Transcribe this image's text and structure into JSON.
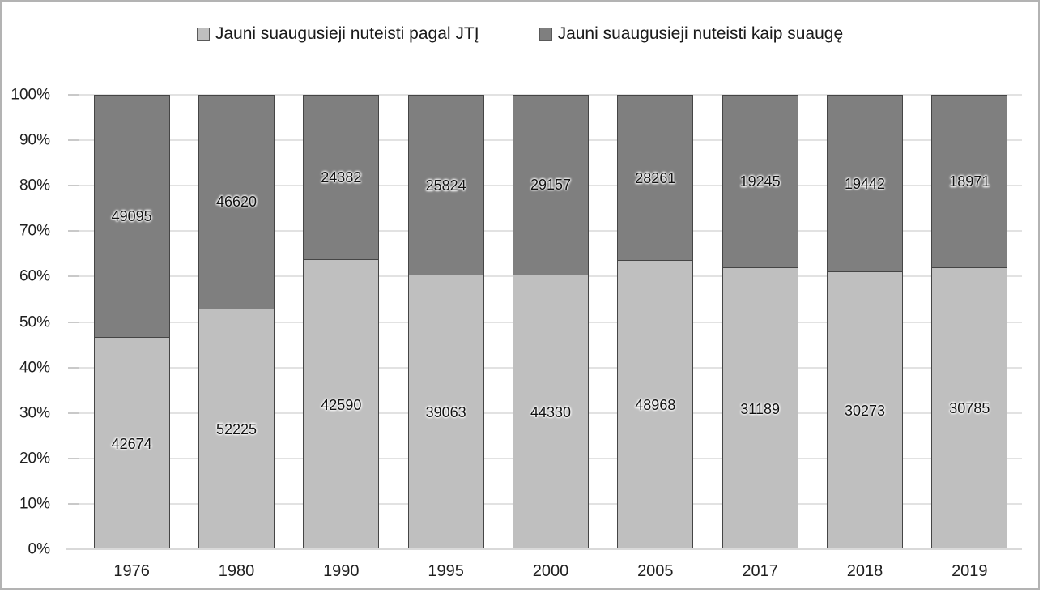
{
  "chart_data": {
    "type": "bar",
    "stacking": "percent",
    "title": "",
    "xlabel": "",
    "ylabel": "",
    "categories": [
      "1976",
      "1980",
      "1990",
      "1995",
      "2000",
      "2005",
      "2017",
      "2018",
      "2019"
    ],
    "series": [
      {
        "name": "Jauni suaugusieji nuteisti pagal JTĮ",
        "color": "#bfbfbf",
        "values": [
          42674,
          52225,
          42590,
          39063,
          44330,
          48968,
          31189,
          30273,
          30785
        ]
      },
      {
        "name": "Jauni suaugusieji nuteisti kaip suaugę",
        "color": "#7f7f7f",
        "values": [
          49095,
          46620,
          24382,
          25824,
          29157,
          28261,
          19245,
          19442,
          18971
        ]
      }
    ],
    "y_ticks": [
      "0%",
      "10%",
      "20%",
      "30%",
      "40%",
      "50%",
      "60%",
      "70%",
      "80%",
      "90%",
      "100%"
    ],
    "ylim": [
      0,
      100
    ],
    "grid": true,
    "legend_position": "top",
    "colors": {
      "bar_border": "#454545",
      "gridline": "#e2e2e2",
      "axis_line": "#d9d9d9",
      "text": "#1f1f1f",
      "frame_border": "#b3b3b3"
    }
  }
}
